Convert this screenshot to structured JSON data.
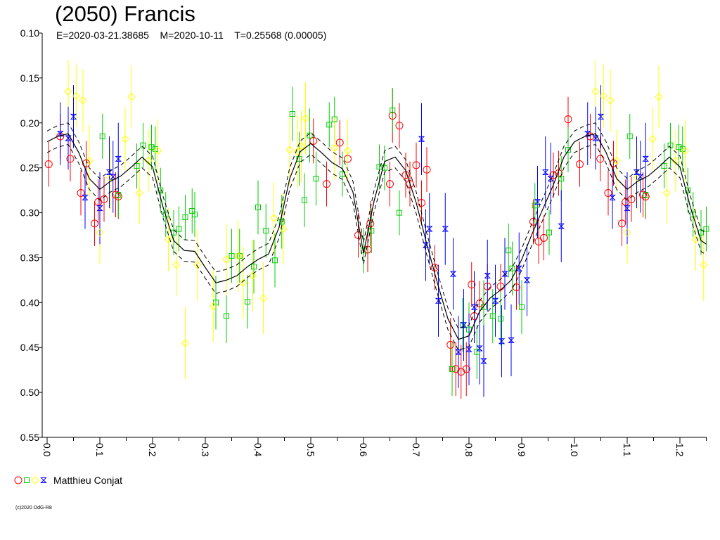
{
  "title": "(2050) Francis",
  "subtitle": "E=2020-03-21.38685    M=2020-10-11    T=0.25568 (0.00005)",
  "legend": {
    "label": "Matthieu Conjat",
    "marker_colors": [
      "#ff0000",
      "#00cc00",
      "#ffff00",
      "#0000ff"
    ]
  },
  "copyright": "(c)2020 OdG-R8",
  "chart_data": {
    "type": "scatter",
    "title": "(2050) Francis",
    "xlabel": "",
    "ylabel": "",
    "xlim": [
      0,
      1.25
    ],
    "ylim": [
      0.55,
      0.1
    ],
    "y_inverted": true,
    "grid": false,
    "legend_position": "bottom-left",
    "x_ticks": [
      "0.0",
      "0.1",
      "0.2",
      "0.3",
      "0.4",
      "0.5",
      "0.6",
      "0.7",
      "0.8",
      "0.9",
      "1.0",
      "1.1",
      "1.2"
    ],
    "y_ticks": [
      "0.10",
      "0.15",
      "0.20",
      "0.25",
      "0.30",
      "0.35",
      "0.40",
      "0.45",
      "0.50",
      "0.55"
    ],
    "fit_curve": {
      "x": [
        0.0,
        0.02,
        0.04,
        0.06,
        0.08,
        0.1,
        0.12,
        0.14,
        0.16,
        0.18,
        0.2,
        0.22,
        0.24,
        0.26,
        0.28,
        0.3,
        0.32,
        0.34,
        0.36,
        0.38,
        0.4,
        0.42,
        0.44,
        0.46,
        0.48,
        0.5,
        0.52,
        0.54,
        0.56,
        0.58,
        0.6,
        0.62,
        0.64,
        0.66,
        0.68,
        0.7,
        0.72,
        0.74,
        0.76,
        0.78,
        0.8,
        0.82,
        0.84,
        0.86,
        0.88,
        0.9,
        0.92,
        0.94,
        0.96,
        0.98,
        1.0,
        1.02,
        1.04,
        1.06,
        1.08,
        1.1,
        1.12,
        1.14,
        1.16,
        1.18,
        1.2,
        1.22,
        1.24,
        1.25
      ],
      "y": [
        0.221,
        0.215,
        0.212,
        0.233,
        0.262,
        0.274,
        0.265,
        0.259,
        0.249,
        0.238,
        0.249,
        0.294,
        0.331,
        0.342,
        0.343,
        0.361,
        0.378,
        0.375,
        0.37,
        0.36,
        0.352,
        0.346,
        0.316,
        0.262,
        0.232,
        0.223,
        0.233,
        0.244,
        0.251,
        0.277,
        0.345,
        0.287,
        0.243,
        0.238,
        0.253,
        0.289,
        0.335,
        0.378,
        0.418,
        0.441,
        0.437,
        0.41,
        0.395,
        0.386,
        0.375,
        0.352,
        0.323,
        0.296,
        0.269,
        0.238,
        0.221,
        0.215,
        0.212,
        0.233,
        0.262,
        0.274,
        0.265,
        0.259,
        0.249,
        0.238,
        0.249,
        0.294,
        0.331,
        0.335
      ],
      "band": 0.012
    },
    "series": [
      {
        "name": "",
        "marker": "circle",
        "color": "#ff0000",
        "x": [
          0.003,
          0.025,
          0.044,
          0.064,
          0.074,
          0.09,
          0.097,
          0.108,
          0.13,
          0.135,
          0.505,
          0.53,
          0.555,
          0.57,
          0.59,
          0.608,
          0.613,
          0.65,
          0.655,
          0.668,
          0.68,
          0.688,
          0.7,
          0.71,
          0.72,
          0.735,
          0.765,
          0.775,
          0.785,
          0.795,
          0.805,
          0.81,
          0.82,
          0.835,
          0.86,
          0.89,
          0.922,
          0.932,
          0.942,
          0.96,
          0.97,
          0.988,
          1.01,
          1.03,
          1.049,
          1.064,
          1.074,
          1.09,
          1.097,
          1.108,
          1.13,
          1.135
        ],
        "y": [
          0.246,
          0.215,
          0.24,
          0.278,
          0.245,
          0.312,
          0.288,
          0.285,
          0.28,
          0.282,
          0.22,
          0.268,
          0.222,
          0.24,
          0.325,
          0.341,
          0.312,
          0.268,
          0.192,
          0.203,
          0.258,
          0.268,
          0.247,
          0.289,
          0.252,
          0.361,
          0.447,
          0.474,
          0.477,
          0.474,
          0.38,
          0.415,
          0.401,
          0.382,
          0.382,
          0.383,
          0.31,
          0.332,
          0.328,
          0.258,
          0.256,
          0.196,
          0.246,
          0.215,
          0.24,
          0.278,
          0.245,
          0.312,
          0.288,
          0.285,
          0.28,
          0.282
        ],
        "err": [
          0.025,
          0.025,
          0.025,
          0.025,
          0.025,
          0.025,
          0.025,
          0.025,
          0.025,
          0.025,
          0.025,
          0.025,
          0.025,
          0.025,
          0.025,
          0.025,
          0.025,
          0.025,
          0.03,
          0.025,
          0.025,
          0.025,
          0.025,
          0.025,
          0.025,
          0.025,
          0.03,
          0.03,
          0.03,
          0.03,
          0.025,
          0.03,
          0.025,
          0.025,
          0.025,
          0.025,
          0.025,
          0.025,
          0.025,
          0.025,
          0.025,
          0.025,
          0.025,
          0.025,
          0.025,
          0.025,
          0.025,
          0.025,
          0.025,
          0.025,
          0.025,
          0.025
        ]
      },
      {
        "name": "",
        "marker": "square",
        "color": "#00cc00",
        "x": [
          0.105,
          0.135,
          0.17,
          0.182,
          0.198,
          0.205,
          0.215,
          0.225,
          0.24,
          0.25,
          0.262,
          0.275,
          0.28,
          0.32,
          0.34,
          0.35,
          0.365,
          0.38,
          0.392,
          0.4,
          0.415,
          0.432,
          0.445,
          0.465,
          0.478,
          0.488,
          0.498,
          0.51,
          0.535,
          0.545,
          0.56,
          0.6,
          0.615,
          0.63,
          0.64,
          0.655,
          0.668,
          0.768,
          0.788,
          0.8,
          0.815,
          0.828,
          0.845,
          0.86,
          0.875,
          0.882,
          0.9,
          0.925,
          0.952,
          0.975,
          0.988,
          1.105,
          1.135,
          1.17,
          1.182,
          1.198,
          1.205,
          1.215,
          1.225,
          1.24,
          1.25
        ],
        "y": [
          0.215,
          0.28,
          0.248,
          0.225,
          0.227,
          0.229,
          0.275,
          0.302,
          0.322,
          0.318,
          0.305,
          0.298,
          0.302,
          0.4,
          0.415,
          0.348,
          0.348,
          0.399,
          0.36,
          0.294,
          0.32,
          0.353,
          0.31,
          0.19,
          0.24,
          0.286,
          0.214,
          0.262,
          0.202,
          0.196,
          0.257,
          0.342,
          0.32,
          0.249,
          0.25,
          0.186,
          0.3,
          0.474,
          0.425,
          0.43,
          0.455,
          0.405,
          0.415,
          0.418,
          0.342,
          0.362,
          0.405,
          0.292,
          0.322,
          0.262,
          0.23,
          0.215,
          0.28,
          0.248,
          0.225,
          0.227,
          0.229,
          0.275,
          0.302,
          0.322,
          0.318
        ],
        "err": [
          0.025,
          0.025,
          0.025,
          0.025,
          0.025,
          0.025,
          0.025,
          0.025,
          0.025,
          0.025,
          0.025,
          0.025,
          0.025,
          0.03,
          0.03,
          0.03,
          0.03,
          0.03,
          0.03,
          0.03,
          0.03,
          0.03,
          0.03,
          0.03,
          0.03,
          0.03,
          0.03,
          0.03,
          0.025,
          0.025,
          0.025,
          0.025,
          0.025,
          0.025,
          0.025,
          0.025,
          0.025,
          0.03,
          0.03,
          0.03,
          0.03,
          0.03,
          0.03,
          0.03,
          0.03,
          0.03,
          0.03,
          0.025,
          0.025,
          0.025,
          0.025,
          0.025,
          0.025,
          0.025,
          0.025,
          0.025,
          0.025,
          0.025,
          0.025,
          0.025,
          0.025
        ]
      },
      {
        "name": "",
        "marker": "diamond",
        "color": "#ffff00",
        "x": [
          0.04,
          0.055,
          0.068,
          0.08,
          0.1,
          0.12,
          0.148,
          0.16,
          0.175,
          0.192,
          0.21,
          0.23,
          0.245,
          0.262,
          0.285,
          0.315,
          0.34,
          0.362,
          0.372,
          0.39,
          0.41,
          0.43,
          0.448,
          0.46,
          0.475,
          0.482,
          0.49,
          0.545,
          0.57,
          1.04,
          1.055,
          1.068,
          1.08,
          1.1,
          1.12,
          1.148,
          1.16,
          1.175,
          1.192,
          1.21,
          1.23,
          1.245
        ],
        "y": [
          0.165,
          0.17,
          0.175,
          0.242,
          0.322,
          0.261,
          0.218,
          0.171,
          0.278,
          0.242,
          0.231,
          0.33,
          0.358,
          0.445,
          0.358,
          0.404,
          0.352,
          0.348,
          0.378,
          0.37,
          0.395,
          0.306,
          0.318,
          0.23,
          0.232,
          0.226,
          0.195,
          0.228,
          0.231,
          0.165,
          0.17,
          0.175,
          0.242,
          0.322,
          0.261,
          0.218,
          0.171,
          0.278,
          0.242,
          0.231,
          0.33,
          0.358
        ],
        "err": [
          0.035,
          0.035,
          0.035,
          0.04,
          0.035,
          0.035,
          0.035,
          0.035,
          0.035,
          0.035,
          0.035,
          0.035,
          0.035,
          0.04,
          0.04,
          0.04,
          0.04,
          0.04,
          0.04,
          0.04,
          0.04,
          0.04,
          0.04,
          0.04,
          0.04,
          0.04,
          0.04,
          0.035,
          0.035,
          0.035,
          0.035,
          0.035,
          0.035,
          0.035,
          0.035,
          0.035,
          0.035,
          0.035,
          0.035,
          0.035,
          0.035,
          0.04
        ]
      },
      {
        "name": "",
        "marker": "hourglass",
        "color": "#0000ff",
        "x": [
          0.025,
          0.04,
          0.05,
          0.072,
          0.1,
          0.118,
          0.125,
          0.135,
          0.71,
          0.718,
          0.725,
          0.742,
          0.755,
          0.77,
          0.78,
          0.79,
          0.8,
          0.81,
          0.82,
          0.828,
          0.835,
          0.85,
          0.862,
          0.868,
          0.88,
          0.895,
          0.91,
          0.93,
          0.945,
          0.955,
          0.975,
          1.025,
          1.04,
          1.05,
          1.072,
          1.1,
          1.118,
          1.125,
          1.135
        ],
        "y": [
          0.212,
          0.217,
          0.193,
          0.283,
          0.295,
          0.255,
          0.26,
          0.24,
          0.218,
          0.336,
          0.318,
          0.398,
          0.318,
          0.368,
          0.455,
          0.425,
          0.452,
          0.405,
          0.451,
          0.465,
          0.37,
          0.398,
          0.443,
          0.368,
          0.442,
          0.362,
          0.375,
          0.288,
          0.255,
          0.262,
          0.315,
          0.212,
          0.217,
          0.193,
          0.283,
          0.295,
          0.255,
          0.26,
          0.24
        ],
        "err": [
          0.035,
          0.035,
          0.035,
          0.035,
          0.04,
          0.04,
          0.04,
          0.04,
          0.04,
          0.04,
          0.04,
          0.04,
          0.04,
          0.04,
          0.04,
          0.04,
          0.04,
          0.04,
          0.04,
          0.04,
          0.04,
          0.04,
          0.04,
          0.04,
          0.04,
          0.04,
          0.04,
          0.04,
          0.04,
          0.04,
          0.04,
          0.035,
          0.035,
          0.035,
          0.035,
          0.04,
          0.04,
          0.04,
          0.04
        ]
      }
    ]
  }
}
